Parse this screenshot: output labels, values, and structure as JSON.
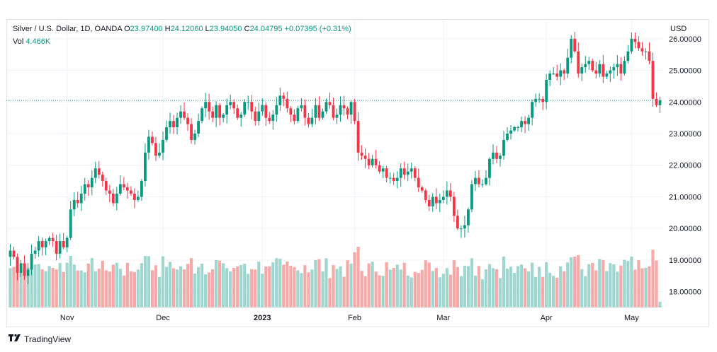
{
  "header": {
    "symbol": "Silver / U.S. Dollar, 1D, OANDA",
    "open_label": "O",
    "open": "23.97400",
    "high_label": "H",
    "high": "24.12060",
    "low_label": "L",
    "low": "23.94050",
    "close_label": "C",
    "close": "24.04795",
    "change": "+0.07395 (+0.31%)",
    "vol_label": "Vol",
    "vol_value": "4.466K"
  },
  "currency": "USD",
  "brand": {
    "name": "TradingView",
    "icon": "tradingview-logo-icon"
  },
  "colors": {
    "up": "#089981",
    "down": "#f23645",
    "up_vol": "#9fd6cf",
    "down_vol": "#f5aaa8",
    "grid": "#f0f3fa",
    "price_line": "#089981"
  },
  "chart_data": {
    "type": "candlestick",
    "y_axis": {
      "min": 17.5,
      "max": 26.6,
      "ticks": [
        "18.00000",
        "19.00000",
        "20.00000",
        "21.00000",
        "22.00000",
        "23.00000",
        "24.00000",
        "25.00000",
        "26.00000"
      ],
      "last_price": 24.048
    },
    "x_axis": {
      "labels": [
        {
          "text": "Nov",
          "index": 16
        },
        {
          "text": "Dec",
          "index": 43
        },
        {
          "text": "2023",
          "index": 71
        },
        {
          "text": "Feb",
          "index": 97
        },
        {
          "text": "Mar",
          "index": 122
        },
        {
          "text": "Apr",
          "index": 151
        },
        {
          "text": "May",
          "index": 175
        }
      ]
    },
    "close": [
      19.3,
      19.1,
      18.6,
      18.9,
      18.5,
      18.7,
      19.2,
      19.3,
      19.6,
      19.4,
      19.6,
      19.7,
      19.6,
      19.2,
      19.6,
      19.4,
      19.7,
      20.6,
      20.9,
      20.8,
      21.1,
      21.4,
      21.3,
      21.6,
      21.9,
      21.7,
      21.5,
      21.2,
      21.1,
      20.8,
      21.1,
      21.4,
      21.3,
      21.2,
      21.1,
      20.9,
      21.0,
      21.5,
      22.4,
      22.9,
      22.7,
      22.3,
      22.4,
      22.8,
      23.2,
      23.4,
      23.2,
      23.5,
      23.7,
      23.5,
      23.3,
      22.8,
      23.0,
      23.4,
      23.8,
      24.0,
      23.7,
      23.5,
      23.9,
      23.5,
      23.6,
      23.9,
      24.0,
      23.8,
      23.5,
      23.6,
      24.0,
      24.0,
      23.7,
      23.4,
      23.7,
      23.9,
      23.5,
      23.4,
      23.6,
      23.9,
      24.2,
      24.1,
      23.8,
      23.6,
      23.4,
      23.8,
      23.9,
      23.5,
      23.3,
      23.5,
      23.9,
      23.5,
      23.7,
      24.0,
      23.9,
      23.5,
      23.6,
      23.9,
      23.8,
      23.6,
      24.0,
      23.4,
      22.4,
      22.3,
      22.2,
      22.0,
      22.2,
      22.0,
      21.8,
      21.9,
      21.6,
      21.6,
      21.5,
      21.6,
      21.9,
      21.7,
      21.8,
      21.9,
      21.6,
      21.3,
      21.2,
      20.9,
      20.7,
      21.0,
      20.8,
      20.9,
      21.0,
      21.2,
      21.0,
      20.4,
      20.0,
      20.0,
      20.1,
      20.6,
      21.4,
      21.6,
      21.4,
      21.4,
      21.6,
      22.2,
      22.4,
      22.2,
      22.3,
      22.8,
      23.0,
      23.1,
      23.2,
      23.2,
      23.4,
      23.3,
      23.5,
      24.0,
      24.1,
      24.1,
      24.0,
      24.7,
      24.9,
      24.9,
      24.8,
      25.0,
      24.9,
      25.4,
      26.0,
      25.6,
      24.9,
      25.1,
      25.2,
      25.3,
      25.0,
      24.9,
      25.2,
      24.8,
      24.9,
      25.0,
      25.1,
      25.2,
      24.9,
      25.3,
      25.6,
      26.0,
      25.9,
      25.7,
      25.6,
      25.6,
      25.3,
      24.1,
      23.9,
      24.048
    ]
  }
}
